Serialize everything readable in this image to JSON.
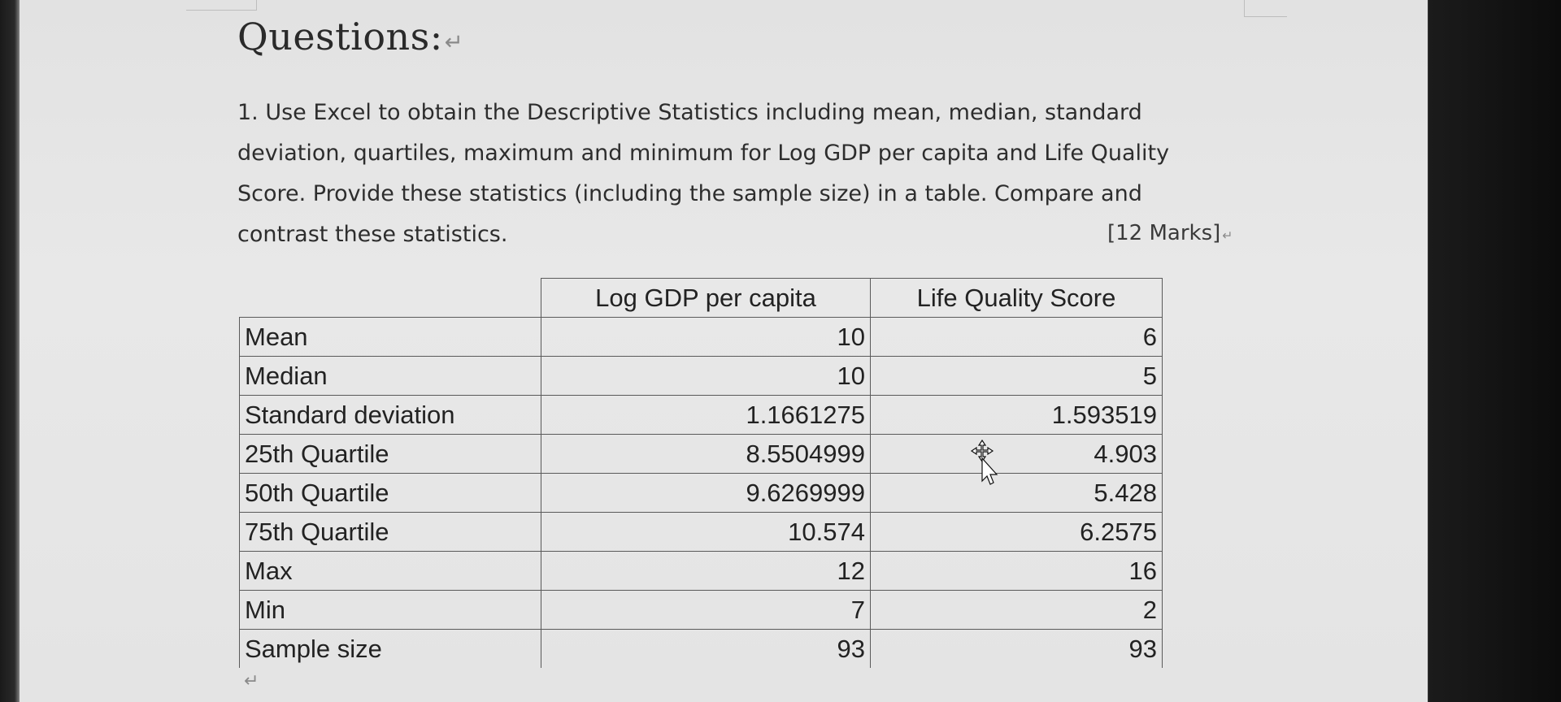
{
  "document": {
    "heading": "Questions:",
    "paragraph_mark": "↵",
    "question_lines": [
      "1. Use Excel to obtain the Descriptive Statistics including mean, median, standard",
      "deviation, quartiles, maximum and minimum for Log GDP per capita and Life Quality",
      "Score. Provide these statistics (including the sample size) in a table. Compare and",
      "contrast these statistics."
    ],
    "marks": "[12 Marks]"
  },
  "table": {
    "headers": [
      "",
      "Log GDP per capita",
      "Life Quality  Score"
    ],
    "rows": [
      {
        "label": "Mean",
        "gdp": "10",
        "lqs": "6"
      },
      {
        "label": "Median",
        "gdp": "10",
        "lqs": "5"
      },
      {
        "label": "Standard deviation",
        "gdp": "1.1661275",
        "lqs": "1.593519"
      },
      {
        "label": "25th Quartile",
        "gdp": "8.5504999",
        "lqs": "4.903"
      },
      {
        "label": "50th Quartile",
        "gdp": "9.6269999",
        "lqs": "5.428"
      },
      {
        "label": "75th Quartile",
        "gdp": "10.574",
        "lqs": "6.2575"
      },
      {
        "label": "Max",
        "gdp": "12",
        "lqs": "16"
      },
      {
        "label": "Min",
        "gdp": "7",
        "lqs": "2"
      },
      {
        "label": "Sample size",
        "gdp": "93",
        "lqs": "93"
      }
    ]
  },
  "icons": {
    "cursor": "move-cursor-icon"
  }
}
